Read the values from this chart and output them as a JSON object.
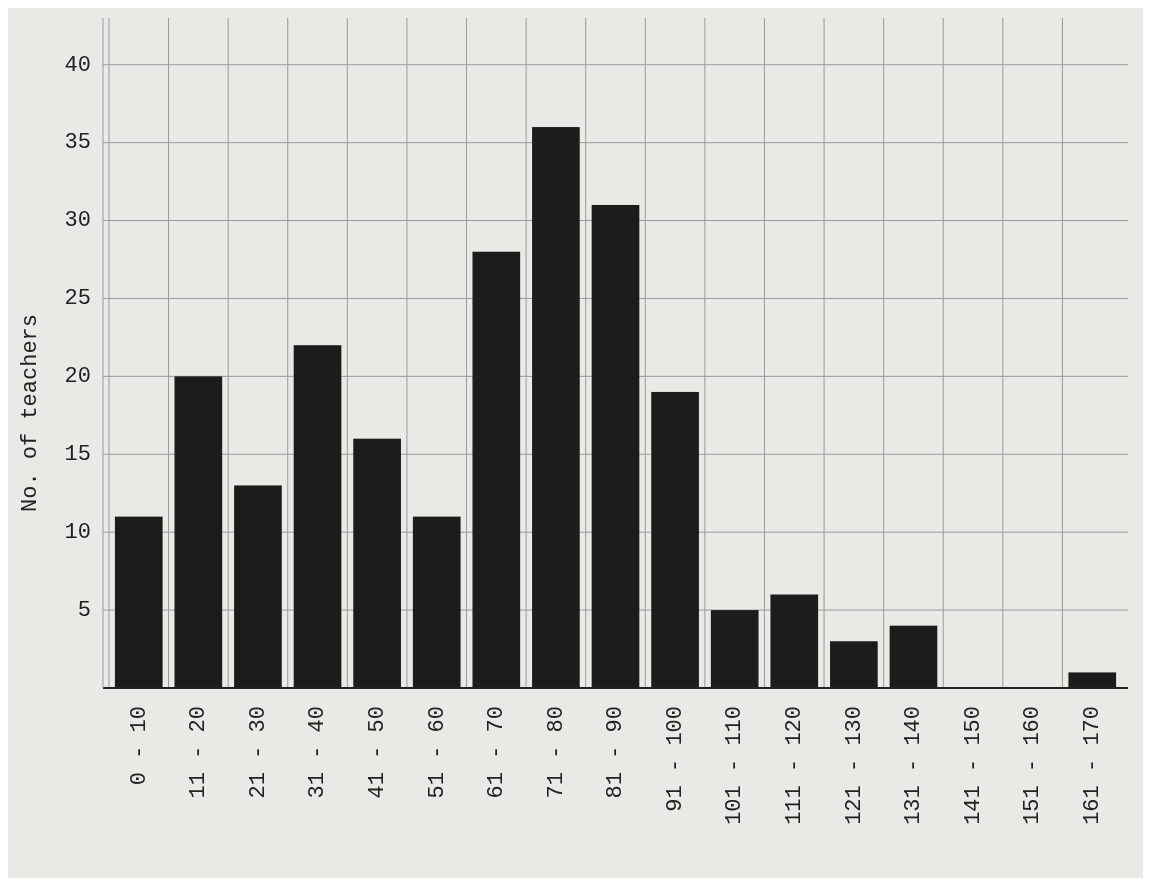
{
  "chart_data": {
    "type": "bar",
    "ylabel": "No. of teachers",
    "categories": [
      "0 - 10",
      "11 - 20",
      "21 - 30",
      "31 - 40",
      "41 - 50",
      "51 - 60",
      "61 - 70",
      "71 - 80",
      "81 - 90",
      "91 - 100",
      "101 - 110",
      "111 - 120",
      "121 - 130",
      "131 - 140",
      "141 - 150",
      "151 - 160",
      "161 - 170"
    ],
    "values": [
      11,
      20,
      13,
      22,
      16,
      11,
      28,
      36,
      31,
      19,
      5,
      6,
      3,
      4,
      0,
      0,
      1
    ],
    "color": "#1c1c1c",
    "ylim": [
      0,
      43
    ],
    "yticks": [
      5,
      10,
      15,
      20,
      25,
      30,
      35,
      40
    ],
    "grid": true
  }
}
